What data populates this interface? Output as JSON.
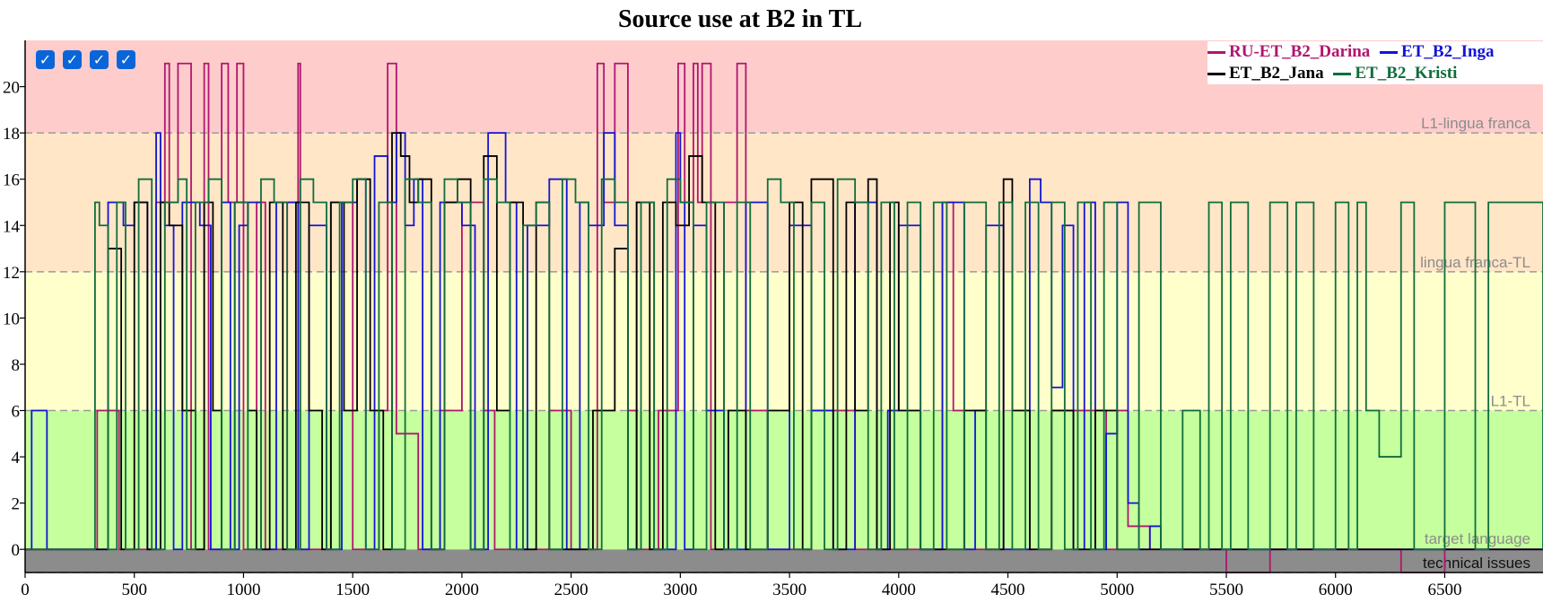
{
  "chart_data": {
    "type": "line",
    "title": "Source use at B2 in TL",
    "xlabel": "",
    "ylabel": "",
    "xlim": [
      0,
      6950
    ],
    "ylim": [
      -1,
      22
    ],
    "x_ticks": [
      0,
      500,
      1000,
      1500,
      2000,
      2500,
      3000,
      3500,
      4000,
      4500,
      5000,
      5500,
      6000,
      6500
    ],
    "y_ticks": [
      0,
      2,
      4,
      6,
      8,
      10,
      12,
      14,
      16,
      18,
      20
    ],
    "grid": false,
    "legend_position": "top-right",
    "zones": [
      {
        "label": "technical issues",
        "from": -1,
        "to": 0,
        "color": "#8c8c8c"
      },
      {
        "label": "target language",
        "from": 0,
        "to": 6,
        "color": "#c6ff9e"
      },
      {
        "label": "L1-TL",
        "from": 6,
        "to": 12,
        "color": "#ffffcc"
      },
      {
        "label": "lingua franca-TL",
        "from": 12,
        "to": 18,
        "color": "#ffe6c7"
      },
      {
        "label": "L1-lingua franca",
        "from": 18,
        "to": 22,
        "color": "#ffcccc"
      }
    ],
    "thresholds": [
      {
        "y": 6,
        "label": "L1-TL"
      },
      {
        "y": 12,
        "label": "lingua franca-TL"
      },
      {
        "y": 18,
        "label": "L1-lingua franca"
      },
      {
        "y": -1,
        "label": ""
      }
    ],
    "series": [
      {
        "name": "RU-ET_B2_Darina",
        "color": "#b0166e",
        "x": [
          0,
          330,
          430,
          600,
          640,
          660,
          700,
          760,
          820,
          840,
          900,
          930,
          970,
          1000,
          1060,
          1100,
          1200,
          1250,
          1260,
          1400,
          1500,
          1620,
          1660,
          1700,
          1800,
          1900,
          2000,
          2100,
          2150,
          2300,
          2400,
          2500,
          2620,
          2650,
          2700,
          2760,
          2800,
          2900,
          2990,
          3020,
          3060,
          3080,
          3100,
          3140,
          3200,
          3260,
          3300,
          3400,
          3600,
          3800,
          4000,
          4200,
          4250,
          4300,
          4420,
          4500,
          4700,
          4800,
          4900,
          4950,
          5000,
          5050,
          5100,
          5150,
          5200,
          5300,
          5500,
          5700,
          5900,
          6100,
          6300,
          6500,
          6700,
          6950
        ],
        "y": [
          0,
          6,
          0,
          15,
          21,
          15,
          21,
          0,
          21,
          0,
          21,
          15,
          21,
          0,
          15,
          0,
          15,
          21,
          0,
          15,
          0,
          6,
          21,
          5,
          0,
          6,
          15,
          6,
          0,
          0,
          6,
          0,
          21,
          15,
          21,
          6,
          0,
          6,
          21,
          15,
          21,
          15,
          21,
          0,
          15,
          21,
          6,
          0,
          6,
          0,
          0,
          15,
          6,
          0,
          0,
          0,
          6,
          6,
          6,
          0,
          6,
          1,
          1,
          0,
          0,
          0,
          -1,
          0,
          0,
          0,
          -1,
          0,
          0,
          0
        ]
      },
      {
        "name": "ET_B2_Inga",
        "color": "#1414d4",
        "x": [
          0,
          30,
          100,
          380,
          450,
          500,
          560,
          600,
          620,
          640,
          680,
          720,
          800,
          850,
          900,
          940,
          980,
          1020,
          1080,
          1150,
          1250,
          1300,
          1380,
          1450,
          1520,
          1560,
          1600,
          1660,
          1700,
          1740,
          1780,
          1820,
          1900,
          2000,
          2060,
          2120,
          2200,
          2250,
          2300,
          2400,
          2480,
          2540,
          2580,
          2650,
          2700,
          2760,
          2800,
          2880,
          2980,
          3000,
          3020,
          3060,
          3120,
          3200,
          3300,
          3400,
          3500,
          3600,
          3700,
          3800,
          3900,
          3950,
          4000,
          4100,
          4200,
          4300,
          4350,
          4400,
          4480,
          4600,
          4650,
          4700,
          4750,
          4800,
          4850,
          4900,
          4950,
          5000,
          5050,
          5100,
          5150,
          5200,
          6950
        ],
        "y": [
          0,
          6,
          0,
          15,
          14,
          15,
          0,
          18,
          15,
          14,
          0,
          15,
          14,
          0,
          15,
          0,
          14,
          15,
          0,
          15,
          0,
          14,
          0,
          15,
          16,
          0,
          17,
          15,
          18,
          14,
          16,
          0,
          15,
          14,
          0,
          18,
          15,
          0,
          14,
          16,
          0,
          15,
          14,
          18,
          14,
          0,
          15,
          0,
          18,
          15,
          0,
          14,
          6,
          0,
          15,
          0,
          14,
          6,
          0,
          15,
          0,
          6,
          14,
          0,
          15,
          0,
          6,
          14,
          0,
          16,
          15,
          7,
          14,
          0,
          15,
          0,
          5,
          15,
          2,
          0,
          1,
          0,
          0
        ]
      },
      {
        "name": "ET_B2_Jana",
        "color": "#000000",
        "x": [
          0,
          100,
          300,
          380,
          440,
          500,
          560,
          620,
          660,
          720,
          780,
          820,
          860,
          900,
          960,
          1020,
          1060,
          1120,
          1180,
          1240,
          1300,
          1360,
          1400,
          1460,
          1520,
          1580,
          1640,
          1680,
          1720,
          1760,
          1800,
          1860,
          1920,
          1980,
          2040,
          2100,
          2160,
          2220,
          2280,
          2340,
          2400,
          2500,
          2600,
          2700,
          2760,
          2800,
          2860,
          2920,
          2980,
          3040,
          3100,
          3160,
          3220,
          3300,
          3400,
          3500,
          3560,
          3600,
          3700,
          3760,
          3800,
          3860,
          3900,
          3960,
          4000,
          4100,
          4200,
          4300,
          4400,
          4480,
          4520,
          4600,
          4700,
          4800,
          4900,
          5000,
          5100,
          6950
        ],
        "y": [
          0,
          0,
          0,
          13,
          0,
          15,
          0,
          15,
          14,
          6,
          0,
          15,
          6,
          0,
          15,
          6,
          0,
          15,
          0,
          15,
          6,
          0,
          15,
          6,
          16,
          6,
          0,
          18,
          17,
          15,
          16,
          0,
          15,
          16,
          0,
          17,
          6,
          15,
          0,
          15,
          0,
          0,
          6,
          13,
          0,
          15,
          0,
          15,
          14,
          17,
          15,
          0,
          6,
          0,
          6,
          15,
          0,
          16,
          0,
          15,
          6,
          16,
          0,
          15,
          6,
          0,
          0,
          6,
          0,
          16,
          6,
          0,
          6,
          0,
          6,
          0,
          0,
          0
        ]
      },
      {
        "name": "ET_B2_Kristi",
        "color": "#0f6e3c",
        "x": [
          0,
          320,
          340,
          380,
          420,
          460,
          520,
          580,
          640,
          700,
          740,
          780,
          840,
          900,
          960,
          1020,
          1080,
          1140,
          1200,
          1260,
          1320,
          1380,
          1440,
          1500,
          1560,
          1620,
          1680,
          1740,
          1800,
          1860,
          1920,
          1980,
          2040,
          2100,
          2160,
          2220,
          2280,
          2340,
          2400,
          2460,
          2520,
          2580,
          2640,
          2700,
          2760,
          2820,
          2880,
          2940,
          3000,
          3060,
          3120,
          3200,
          3260,
          3320,
          3400,
          3460,
          3520,
          3600,
          3660,
          3720,
          3800,
          3860,
          3920,
          3980,
          4040,
          4100,
          4160,
          4220,
          4300,
          4400,
          4460,
          4520,
          4580,
          4640,
          4700,
          4760,
          4820,
          4880,
          4940,
          5000,
          5100,
          5200,
          5300,
          5380,
          5420,
          5480,
          5520,
          5600,
          5700,
          5780,
          5820,
          5900,
          6000,
          6060,
          6100,
          6140,
          6200,
          6300,
          6360,
          6500,
          6640,
          6700,
          6950
        ],
        "y": [
          0,
          15,
          14,
          0,
          15,
          0,
          16,
          0,
          15,
          16,
          0,
          15,
          16,
          0,
          15,
          0,
          16,
          15,
          0,
          16,
          15,
          0,
          15,
          16,
          0,
          15,
          0,
          16,
          15,
          0,
          16,
          15,
          0,
          16,
          15,
          0,
          14,
          15,
          0,
          16,
          15,
          0,
          16,
          15,
          0,
          15,
          0,
          16,
          15,
          0,
          15,
          0,
          15,
          0,
          16,
          15,
          0,
          15,
          0,
          16,
          15,
          0,
          15,
          0,
          15,
          0,
          15,
          0,
          15,
          0,
          15,
          0,
          15,
          0,
          15,
          0,
          15,
          0,
          15,
          0,
          15,
          0,
          6,
          0,
          15,
          0,
          15,
          0,
          15,
          0,
          15,
          0,
          15,
          0,
          15,
          6,
          4,
          15,
          0,
          15,
          0,
          15,
          0
        ]
      }
    ]
  },
  "toggles": [
    {
      "name": "RU-ET_B2_Darina",
      "checked": true
    },
    {
      "name": "ET_B2_Inga",
      "checked": true
    },
    {
      "name": "ET_B2_Jana",
      "checked": true
    },
    {
      "name": "ET_B2_Kristi",
      "checked": true
    }
  ]
}
